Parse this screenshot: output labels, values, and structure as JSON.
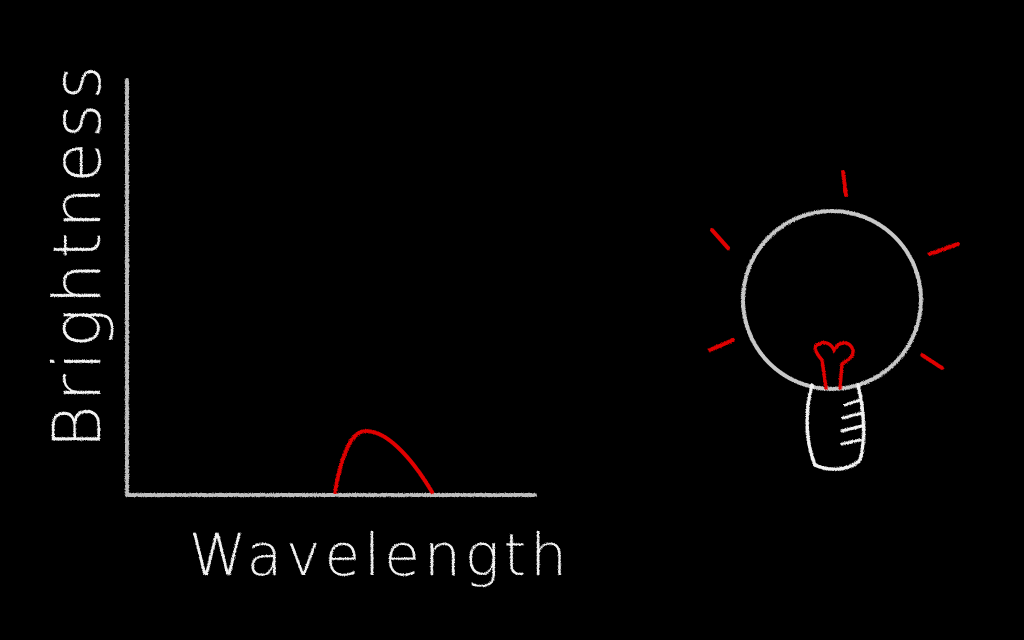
{
  "axes": {
    "y_label": "Brightness",
    "x_label": "Wavelength"
  }
}
